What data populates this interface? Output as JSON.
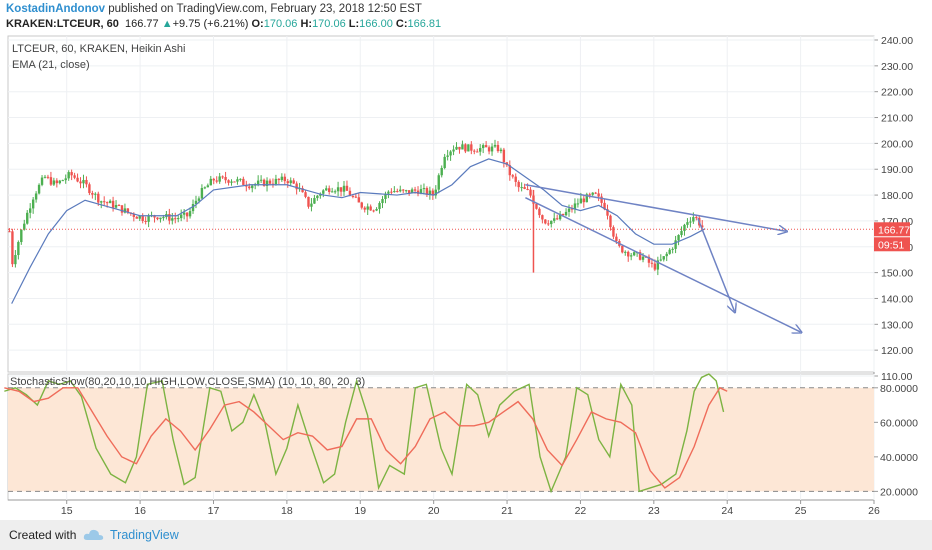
{
  "header": {
    "author": "KostadinAndonov",
    "published": "published on TradingView.com, February 23, 2018 12:50 EST",
    "symbol": "KRAKEN:LTCEUR, 60",
    "last": "166.77",
    "change": "+9.75 (+6.21%)",
    "o_label": "O:",
    "o": "170.06",
    "h_label": "H:",
    "h": "170.06",
    "l_label": "L:",
    "l": "166.00",
    "c_label": "C:",
    "c": "166.81"
  },
  "legend": {
    "line1": "LTCEUR, 60, KRAKEN, Heikin Ashi",
    "line2": "EMA (21, close)",
    "osc": "StochasticSlow(80,20,10,10,HIGH,LOW,CLOSE,SMA) (10, 10, 80, 20, 3)"
  },
  "price_tag": "166.77",
  "time_tag": "09:51",
  "footer": {
    "created": "Created with",
    "brand": "TradingView"
  },
  "colors": {
    "up": "#26a69a",
    "upBody": "#4caf50",
    "down": "#ef5350",
    "ema": "#5b7bbd",
    "trend": "#6f83c4",
    "stochK": "#7cb342",
    "stochD": "#ef6c5a",
    "band": "#fde7d6",
    "priceLine": "#ef5350"
  },
  "chart_data": {
    "type": "candlestick",
    "style": "Heikin Ashi",
    "y_ticks": [
      "240.00",
      "230.00",
      "220.00",
      "210.00",
      "200.00",
      "190.00",
      "180.00",
      "170.00",
      "160.00",
      "150.00",
      "140.00",
      "130.00",
      "120.00",
      "110.00"
    ],
    "x_ticks": [
      "15",
      "16",
      "17",
      "18",
      "19",
      "20",
      "21",
      "22",
      "23",
      "24",
      "25",
      "26"
    ],
    "ylim": [
      110,
      240
    ],
    "osc_ticks": [
      "80.0000",
      "60.0000",
      "40.0000",
      "20.0000"
    ],
    "osc_lim": [
      15,
      88
    ],
    "osc_levels": [
      80,
      20
    ],
    "price_line": 166.77,
    "trend_lines": [
      {
        "from": [
          21.25,
          184
        ],
        "to": [
          24.8,
          166
        ]
      },
      {
        "from": [
          21.25,
          179
        ],
        "to": [
          25.0,
          127
        ]
      },
      {
        "from": [
          23.6,
          171
        ],
        "to": [
          24.1,
          135
        ]
      }
    ],
    "ema_points": [
      [
        14.25,
        138
      ],
      [
        14.5,
        152
      ],
      [
        14.75,
        165
      ],
      [
        15,
        174
      ],
      [
        15.25,
        178
      ],
      [
        15.5,
        176
      ],
      [
        15.75,
        174
      ],
      [
        16,
        172
      ],
      [
        16.5,
        172
      ],
      [
        16.75,
        176
      ],
      [
        17,
        182
      ],
      [
        17.5,
        184
      ],
      [
        18,
        184
      ],
      [
        18.25,
        182
      ],
      [
        18.5,
        180
      ],
      [
        18.75,
        179
      ],
      [
        19,
        181
      ],
      [
        19.5,
        180
      ],
      [
        19.75,
        181
      ],
      [
        20,
        180
      ],
      [
        20.25,
        184
      ],
      [
        20.5,
        191
      ],
      [
        20.75,
        194
      ],
      [
        21,
        192
      ],
      [
        21.25,
        187
      ],
      [
        21.5,
        182
      ],
      [
        21.75,
        176
      ],
      [
        22,
        174
      ],
      [
        22.25,
        176
      ],
      [
        22.5,
        172
      ],
      [
        22.75,
        165
      ],
      [
        23,
        161
      ],
      [
        23.25,
        161
      ],
      [
        23.5,
        164
      ],
      [
        23.7,
        167
      ]
    ],
    "candle_anchors": [
      [
        14.25,
        153
      ],
      [
        14.4,
        168
      ],
      [
        14.55,
        180
      ],
      [
        14.7,
        187
      ],
      [
        14.85,
        184
      ],
      [
        15.05,
        188
      ],
      [
        15.25,
        184
      ],
      [
        15.45,
        178
      ],
      [
        15.65,
        176
      ],
      [
        15.85,
        173
      ],
      [
        16.05,
        171
      ],
      [
        16.25,
        172
      ],
      [
        16.45,
        171
      ],
      [
        16.65,
        172
      ],
      [
        16.8,
        180
      ],
      [
        17.0,
        186
      ],
      [
        17.25,
        186
      ],
      [
        17.5,
        184
      ],
      [
        17.75,
        185
      ],
      [
        18.0,
        186
      ],
      [
        18.15,
        183
      ],
      [
        18.3,
        176
      ],
      [
        18.45,
        181
      ],
      [
        18.6,
        183
      ],
      [
        18.8,
        182
      ],
      [
        19.0,
        176
      ],
      [
        19.2,
        175
      ],
      [
        19.4,
        182
      ],
      [
        19.6,
        181
      ],
      [
        19.8,
        182
      ],
      [
        20.0,
        180
      ],
      [
        20.15,
        196
      ],
      [
        20.3,
        199
      ],
      [
        20.5,
        198
      ],
      [
        20.7,
        198
      ],
      [
        20.9,
        198
      ],
      [
        21.0,
        190
      ],
      [
        21.15,
        183
      ],
      [
        21.3,
        181
      ],
      [
        21.5,
        170
      ],
      [
        21.65,
        170
      ],
      [
        21.85,
        174
      ],
      [
        22.0,
        178
      ],
      [
        22.2,
        180
      ],
      [
        22.35,
        175
      ],
      [
        22.5,
        160
      ],
      [
        22.7,
        157
      ],
      [
        22.85,
        156
      ],
      [
        23.0,
        152
      ],
      [
        23.15,
        156
      ],
      [
        23.3,
        162
      ],
      [
        23.45,
        170
      ],
      [
        23.55,
        172
      ],
      [
        23.7,
        166
      ]
    ],
    "stoch_k": [
      [
        14.15,
        78
      ],
      [
        14.3,
        80
      ],
      [
        14.45,
        76
      ],
      [
        14.6,
        70
      ],
      [
        14.75,
        84
      ],
      [
        14.9,
        82
      ],
      [
        15.05,
        84
      ],
      [
        15.2,
        75
      ],
      [
        15.4,
        45
      ],
      [
        15.6,
        30
      ],
      [
        15.8,
        25
      ],
      [
        15.95,
        40
      ],
      [
        16.1,
        82
      ],
      [
        16.3,
        84
      ],
      [
        16.45,
        50
      ],
      [
        16.6,
        24
      ],
      [
        16.75,
        28
      ],
      [
        16.95,
        80
      ],
      [
        17.1,
        78
      ],
      [
        17.25,
        55
      ],
      [
        17.4,
        60
      ],
      [
        17.55,
        76
      ],
      [
        17.7,
        60
      ],
      [
        17.85,
        30
      ],
      [
        18.0,
        45
      ],
      [
        18.15,
        70
      ],
      [
        18.3,
        50
      ],
      [
        18.5,
        25
      ],
      [
        18.65,
        30
      ],
      [
        18.8,
        60
      ],
      [
        18.95,
        84
      ],
      [
        19.1,
        64
      ],
      [
        19.25,
        22
      ],
      [
        19.4,
        35
      ],
      [
        19.6,
        30
      ],
      [
        19.75,
        80
      ],
      [
        19.9,
        82
      ],
      [
        20.1,
        45
      ],
      [
        20.25,
        30
      ],
      [
        20.45,
        82
      ],
      [
        20.6,
        76
      ],
      [
        20.75,
        52
      ],
      [
        20.9,
        70
      ],
      [
        21.1,
        78
      ],
      [
        21.3,
        82
      ],
      [
        21.45,
        40
      ],
      [
        21.6,
        20
      ],
      [
        21.8,
        40
      ],
      [
        21.95,
        80
      ],
      [
        22.1,
        76
      ],
      [
        22.25,
        50
      ],
      [
        22.4,
        40
      ],
      [
        22.55,
        82
      ],
      [
        22.7,
        70
      ],
      [
        22.8,
        20
      ],
      [
        22.95,
        22
      ],
      [
        23.1,
        24
      ],
      [
        23.3,
        30
      ],
      [
        23.45,
        55
      ],
      [
        23.55,
        78
      ],
      [
        23.65,
        86
      ],
      [
        23.75,
        88
      ],
      [
        23.85,
        84
      ],
      [
        23.95,
        66
      ]
    ],
    "stoch_d": [
      [
        14.15,
        80
      ],
      [
        14.35,
        78
      ],
      [
        14.55,
        72
      ],
      [
        14.75,
        74
      ],
      [
        14.95,
        80
      ],
      [
        15.15,
        80
      ],
      [
        15.35,
        66
      ],
      [
        15.55,
        52
      ],
      [
        15.75,
        40
      ],
      [
        15.95,
        36
      ],
      [
        16.15,
        52
      ],
      [
        16.35,
        62
      ],
      [
        16.55,
        55
      ],
      [
        16.75,
        44
      ],
      [
        16.95,
        56
      ],
      [
        17.15,
        70
      ],
      [
        17.35,
        72
      ],
      [
        17.55,
        66
      ],
      [
        17.75,
        58
      ],
      [
        17.95,
        50
      ],
      [
        18.15,
        54
      ],
      [
        18.35,
        52
      ],
      [
        18.55,
        44
      ],
      [
        18.75,
        46
      ],
      [
        18.95,
        62
      ],
      [
        19.15,
        62
      ],
      [
        19.35,
        44
      ],
      [
        19.55,
        36
      ],
      [
        19.75,
        46
      ],
      [
        19.95,
        62
      ],
      [
        20.15,
        66
      ],
      [
        20.35,
        58
      ],
      [
        20.55,
        58
      ],
      [
        20.75,
        60
      ],
      [
        20.95,
        66
      ],
      [
        21.15,
        72
      ],
      [
        21.35,
        62
      ],
      [
        21.55,
        44
      ],
      [
        21.75,
        35
      ],
      [
        21.95,
        50
      ],
      [
        22.15,
        66
      ],
      [
        22.35,
        62
      ],
      [
        22.55,
        60
      ],
      [
        22.75,
        54
      ],
      [
        22.95,
        32
      ],
      [
        23.15,
        22
      ],
      [
        23.35,
        28
      ],
      [
        23.55,
        46
      ],
      [
        23.75,
        70
      ],
      [
        23.9,
        80
      ],
      [
        24.0,
        78
      ]
    ]
  }
}
